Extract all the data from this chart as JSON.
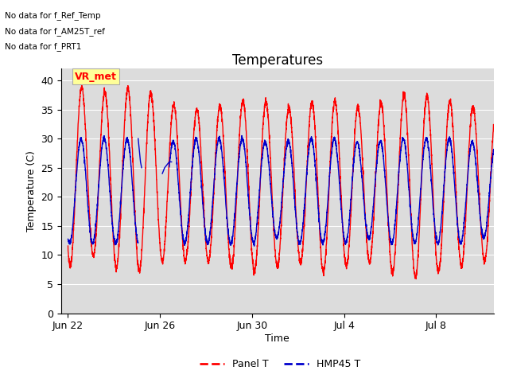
{
  "title": "Temperatures",
  "xlabel": "Time",
  "ylabel": "Temperature (C)",
  "ylim": [
    0,
    42
  ],
  "yticks": [
    0,
    5,
    10,
    15,
    20,
    25,
    30,
    35,
    40
  ],
  "bg_color": "#dcdcdc",
  "fig_color": "#ffffff",
  "line1_color": "#ff0000",
  "line2_color": "#0000cc",
  "line1_label": "Panel T",
  "line2_label": "HMP45 T",
  "annotations": [
    "No data for f_Ref_Temp",
    "No data for f_AM25T_ref",
    "No data for f_PRT1"
  ],
  "vr_met_label": "VR_met",
  "xtick_labels": [
    "Jun 22",
    "Jun 26",
    "Jun 30",
    "Jul 4",
    "Jul 8"
  ],
  "xtick_positions": [
    0.0,
    4.0,
    8.0,
    12.0,
    16.0
  ],
  "xlim": [
    -0.3,
    18.5
  ],
  "title_fontsize": 12,
  "axis_label_fontsize": 9,
  "tick_fontsize": 9
}
